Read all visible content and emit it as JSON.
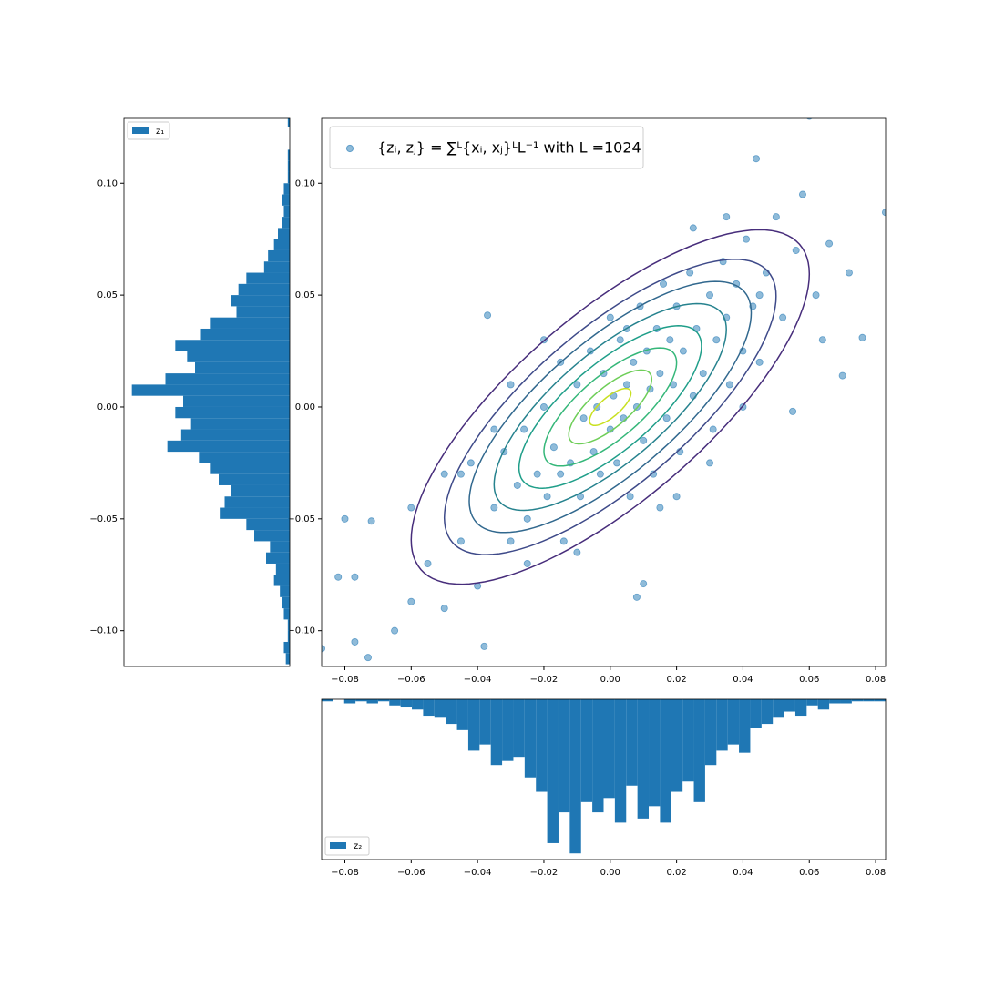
{
  "chart_data": [
    {
      "type": "scatter",
      "series": [
        {
          "name": "{zᵢ, zⱼ} = ∑ᴸ{xᵢ, xⱼ}ᴸL⁻¹ with L =1024",
          "color": "#1f77b4",
          "x": [
            -0.087,
            -0.073,
            -0.077,
            -0.08,
            -0.072,
            -0.082,
            -0.077,
            -0.065,
            -0.06,
            -0.055,
            -0.05,
            -0.045,
            -0.042,
            -0.04,
            -0.037,
            -0.038,
            -0.035,
            -0.032,
            -0.03,
            -0.028,
            -0.026,
            -0.025,
            -0.022,
            -0.02,
            -0.019,
            -0.017,
            -0.015,
            -0.014,
            -0.012,
            -0.01,
            -0.009,
            -0.008,
            -0.006,
            -0.005,
            -0.004,
            -0.003,
            -0.002,
            0.0,
            0.001,
            0.002,
            0.003,
            0.004,
            0.005,
            0.006,
            0.007,
            0.008,
            0.009,
            0.01,
            0.011,
            0.012,
            0.013,
            0.014,
            0.015,
            0.016,
            0.017,
            0.018,
            0.019,
            0.02,
            0.021,
            0.022,
            0.024,
            0.025,
            0.026,
            0.028,
            0.03,
            0.031,
            0.032,
            0.034,
            0.035,
            0.036,
            0.038,
            0.04,
            0.041,
            0.043,
            0.044,
            0.045,
            0.047,
            0.05,
            0.052,
            0.055,
            0.056,
            0.058,
            0.06,
            0.062,
            0.064,
            0.066,
            0.07,
            0.072,
            0.076,
            0.083,
            0.01,
            0.008,
            -0.045,
            -0.06,
            -0.05,
            -0.035,
            0.03,
            0.04,
            -0.02,
            -0.03,
            0.025,
            0.015,
            -0.01,
            0.0,
            -0.025,
            0.02,
            0.035,
            0.045,
            -0.015,
            0.005
          ],
          "values": [
            -0.108,
            -0.112,
            -0.105,
            -0.05,
            -0.051,
            -0.076,
            -0.076,
            -0.1,
            -0.087,
            -0.07,
            -0.03,
            -0.06,
            -0.025,
            -0.08,
            0.041,
            -0.107,
            -0.045,
            -0.02,
            -0.06,
            -0.035,
            -0.01,
            -0.05,
            -0.03,
            0.0,
            -0.04,
            -0.018,
            0.02,
            -0.06,
            -0.025,
            0.01,
            -0.04,
            -0.005,
            0.025,
            -0.02,
            0.0,
            -0.03,
            0.015,
            -0.01,
            0.005,
            -0.025,
            0.03,
            -0.005,
            0.01,
            -0.04,
            0.02,
            0.0,
            0.045,
            -0.015,
            0.025,
            0.008,
            -0.03,
            0.035,
            0.015,
            0.055,
            -0.005,
            0.03,
            0.01,
            0.045,
            -0.02,
            0.025,
            0.06,
            0.005,
            0.035,
            0.015,
            0.05,
            -0.01,
            0.03,
            0.065,
            0.04,
            0.01,
            0.055,
            0.025,
            0.075,
            0.045,
            0.111,
            0.02,
            0.06,
            0.085,
            0.04,
            -0.002,
            0.07,
            0.095,
            0.13,
            0.05,
            0.03,
            0.073,
            0.014,
            0.06,
            0.031,
            0.087,
            -0.079,
            -0.085,
            -0.03,
            -0.045,
            -0.09,
            -0.01,
            -0.025,
            0.0,
            0.03,
            0.01,
            0.08,
            -0.045,
            -0.065,
            0.04,
            -0.07,
            -0.04,
            0.085,
            0.05,
            -0.03,
            0.035
          ]
        }
      ],
      "contours": {
        "mean": [
          0,
          0
        ],
        "sd": [
          0.025,
          0.033
        ],
        "rho": 0.75,
        "levels": [
          2.4,
          2.0,
          1.7,
          1.4,
          1.1,
          0.8,
          0.5,
          0.25
        ],
        "colors": [
          "#472d7b",
          "#3e4a89",
          "#31688e",
          "#26828e",
          "#1f9e89",
          "#35b779",
          "#6ece58",
          "#c8e020"
        ]
      },
      "xlim": [
        -0.087,
        0.083
      ],
      "ylim": [
        -0.116,
        0.129
      ],
      "xticks": [
        {
          "value": -0.08,
          "label": "−0.08"
        },
        {
          "value": -0.06,
          "label": "−0.06"
        },
        {
          "value": -0.04,
          "label": "−0.04"
        },
        {
          "value": -0.02,
          "label": "−0.02"
        },
        {
          "value": 0,
          "label": "0.00"
        },
        {
          "value": 0.02,
          "label": "0.02"
        },
        {
          "value": 0.04,
          "label": "0.04"
        },
        {
          "value": 0.06,
          "label": "0.06"
        },
        {
          "value": 0.08,
          "label": "0.08"
        }
      ],
      "yticks": [
        {
          "value": -0.1,
          "label": "−0.10"
        },
        {
          "value": -0.05,
          "label": "−0.05"
        },
        {
          "value": 0,
          "label": "0.00"
        },
        {
          "value": 0.05,
          "label": "0.05"
        },
        {
          "value": 0.1,
          "label": "0.10"
        }
      ],
      "legend": "upper left"
    },
    {
      "type": "histogram",
      "orientation": "horizontal",
      "name": "z₁",
      "color": "#1f77b4",
      "bins": [
        -0.115,
        -0.11,
        -0.105,
        -0.1,
        -0.095,
        -0.09,
        -0.085,
        -0.08,
        -0.075,
        -0.07,
        -0.065,
        -0.06,
        -0.055,
        -0.05,
        -0.045,
        -0.04,
        -0.035,
        -0.03,
        -0.025,
        -0.02,
        -0.015,
        -0.01,
        -0.005,
        0.0,
        0.005,
        0.01,
        0.015,
        0.02,
        0.025,
        0.03,
        0.035,
        0.04,
        0.045,
        0.05,
        0.055,
        0.06,
        0.065,
        0.07,
        0.075,
        0.08,
        0.085,
        0.09,
        0.095,
        0.1,
        0.105,
        0.11,
        0.115,
        0.12,
        0.125,
        0.13
      ],
      "values": [
        2,
        3,
        1,
        1,
        3,
        4,
        5,
        8,
        7,
        12,
        10,
        18,
        22,
        35,
        33,
        30,
        36,
        40,
        46,
        62,
        55,
        50,
        58,
        54,
        80,
        63,
        48,
        52,
        58,
        45,
        40,
        27,
        30,
        26,
        22,
        13,
        11,
        8,
        6,
        4,
        3,
        4,
        3,
        1,
        1,
        1,
        0,
        0,
        1
      ],
      "countlim": [
        0,
        84
      ],
      "ylim": [
        -0.116,
        0.129
      ],
      "yticks": [
        {
          "value": -0.1,
          "label": "−0.10"
        },
        {
          "value": -0.05,
          "label": "−0.05"
        },
        {
          "value": 0,
          "label": "0.00"
        },
        {
          "value": 0.05,
          "label": "0.05"
        },
        {
          "value": 0.1,
          "label": "0.10"
        }
      ],
      "legend": "upper left"
    },
    {
      "type": "histogram",
      "orientation": "vertical",
      "name": "z₂",
      "color": "#1f77b4",
      "bins": [
        -0.087,
        -0.0836,
        -0.0802,
        -0.0768,
        -0.0734,
        -0.07,
        -0.0666,
        -0.0632,
        -0.0598,
        -0.0564,
        -0.053,
        -0.0496,
        -0.0462,
        -0.0428,
        -0.0394,
        -0.036,
        -0.0326,
        -0.0292,
        -0.0258,
        -0.0224,
        -0.019,
        -0.0156,
        -0.0122,
        -0.0088,
        -0.0054,
        -0.002,
        0.0014,
        0.0048,
        0.0082,
        0.0116,
        0.015,
        0.0184,
        0.0218,
        0.0252,
        0.0286,
        0.032,
        0.0354,
        0.0388,
        0.0422,
        0.0456,
        0.049,
        0.0524,
        0.0558,
        0.0592,
        0.0626,
        0.066,
        0.0694,
        0.0728,
        0.0762,
        0.0796,
        0.083
      ],
      "values": [
        1,
        0,
        2,
        1,
        2,
        1,
        3,
        4,
        5,
        8,
        9,
        12,
        15,
        25,
        22,
        32,
        30,
        28,
        38,
        45,
        70,
        55,
        75,
        50,
        55,
        48,
        60,
        42,
        58,
        52,
        60,
        45,
        40,
        50,
        32,
        25,
        22,
        26,
        14,
        12,
        9,
        6,
        8,
        3,
        5,
        2,
        2,
        1,
        1,
        1
      ],
      "countlim": [
        0,
        78
      ],
      "xlim": [
        -0.087,
        0.083
      ],
      "xticks": [
        {
          "value": -0.08,
          "label": "−0.08"
        },
        {
          "value": -0.06,
          "label": "−0.06"
        },
        {
          "value": -0.04,
          "label": "−0.04"
        },
        {
          "value": -0.02,
          "label": "−0.02"
        },
        {
          "value": 0,
          "label": "0.00"
        },
        {
          "value": 0.02,
          "label": "0.02"
        },
        {
          "value": 0.04,
          "label": "0.04"
        },
        {
          "value": 0.06,
          "label": "0.06"
        },
        {
          "value": 0.08,
          "label": "0.08"
        }
      ],
      "legend": "lower left"
    }
  ]
}
